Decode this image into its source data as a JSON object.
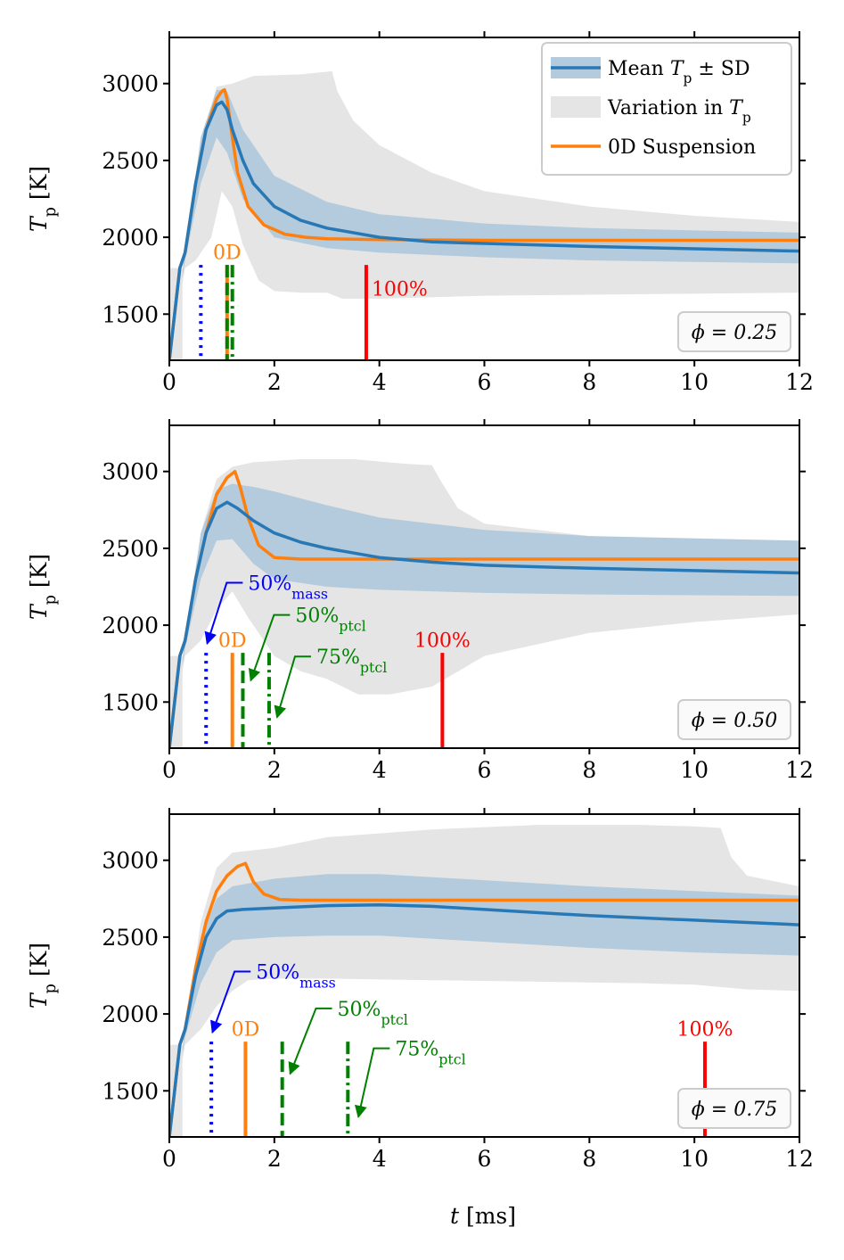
{
  "figure": {
    "xlabel": "t [ms]",
    "ylabel": "T_p [K]",
    "xlim": [
      0,
      12
    ],
    "ylim": [
      1200,
      3300
    ],
    "xticks": [
      0,
      2,
      4,
      6,
      8,
      10,
      12
    ],
    "yticks": [
      1500,
      2000,
      2500,
      3000
    ],
    "xtick_labels": [
      "0",
      "2",
      "4",
      "6",
      "8",
      "10",
      "12"
    ],
    "ytick_labels": [
      "1500",
      "2000",
      "2500",
      "3000"
    ],
    "colors": {
      "mean": "#2878b5",
      "sd_band": "#b3cbdc",
      "variation": "#e5e5e5",
      "suspension": "#ff7f0e",
      "mass_marker": "#0000ff",
      "ptcl_marker": "#008000",
      "full_marker": "#ff0000"
    }
  },
  "legend": {
    "entries": [
      {
        "key": "mean",
        "label": "Mean T_p ± SD"
      },
      {
        "key": "variation",
        "label": "Variation in T_p"
      },
      {
        "key": "suspension",
        "label": "0D Suspension"
      }
    ]
  },
  "chart_data": [
    {
      "type": "line",
      "panel_label": "ϕ = 0.25",
      "series": [
        {
          "name": "Mean T_p",
          "x": [
            0,
            0.1,
            0.2,
            0.3,
            0.5,
            0.7,
            0.9,
            1.0,
            1.1,
            1.2,
            1.4,
            1.6,
            2.0,
            2.5,
            3.0,
            4.0,
            5.0,
            6.0,
            8.0,
            10.0,
            12.0
          ],
          "y": [
            1200,
            1500,
            1800,
            1900,
            2350,
            2700,
            2860,
            2880,
            2830,
            2700,
            2500,
            2350,
            2200,
            2110,
            2060,
            2000,
            1970,
            1960,
            1940,
            1925,
            1910
          ]
        },
        {
          "name": "0D Suspension",
          "x": [
            0,
            0.1,
            0.2,
            0.3,
            0.5,
            0.7,
            0.9,
            1.0,
            1.05,
            1.1,
            1.2,
            1.3,
            1.5,
            1.8,
            2.2,
            2.6,
            3.0,
            4.0,
            6.0,
            12.0
          ],
          "y": [
            1200,
            1500,
            1800,
            1900,
            2350,
            2700,
            2900,
            2950,
            2960,
            2900,
            2650,
            2420,
            2200,
            2080,
            2020,
            2000,
            1990,
            1985,
            1980,
            1980
          ]
        },
        {
          "name": "SD upper",
          "x": [
            0,
            0.3,
            0.6,
            0.9,
            1.1,
            1.4,
            2.0,
            3.0,
            4.0,
            6.0,
            8.0,
            12.0
          ],
          "y": [
            1200,
            1900,
            2650,
            2960,
            2950,
            2700,
            2400,
            2230,
            2150,
            2090,
            2060,
            2030
          ]
        },
        {
          "name": "SD lower",
          "x": [
            0,
            0.3,
            0.6,
            0.9,
            1.1,
            1.4,
            2.0,
            3.0,
            4.0,
            6.0,
            8.0,
            12.0
          ],
          "y": [
            1200,
            1850,
            2350,
            2650,
            2550,
            2250,
            2000,
            1930,
            1900,
            1870,
            1850,
            1830
          ]
        },
        {
          "name": "Variation upper",
          "x": [
            0,
            0.3,
            0.6,
            0.9,
            1.2,
            1.6,
            2.5,
            3.1,
            3.2,
            3.5,
            4.0,
            5.0,
            6.0,
            8.0,
            10.0,
            12.0
          ],
          "y": [
            1200,
            1900,
            2600,
            2980,
            3000,
            3050,
            3060,
            3080,
            2950,
            2760,
            2600,
            2420,
            2300,
            2200,
            2140,
            2100
          ]
        },
        {
          "name": "Variation lower",
          "x": [
            0,
            0.3,
            0.5,
            0.8,
            1.0,
            1.2,
            1.4,
            1.7,
            2.0,
            2.5,
            3.0,
            3.3,
            4.0,
            6.0,
            12.0
          ],
          "y": [
            1200,
            1800,
            1850,
            2000,
            2300,
            2200,
            1950,
            1720,
            1650,
            1640,
            1640,
            1600,
            1600,
            1620,
            1640
          ]
        }
      ],
      "markers": [
        {
          "name": "mass",
          "x": 0.6,
          "style": "dotted"
        },
        {
          "name": "0D",
          "x": 1.1,
          "style": "solid",
          "label": "0D"
        },
        {
          "name": "ptcl50",
          "x": 1.1,
          "style": "dashed"
        },
        {
          "name": "ptcl75",
          "x": 1.2,
          "style": "dashdot"
        },
        {
          "name": "full",
          "x": 3.75,
          "style": "solid",
          "label": "100%"
        }
      ],
      "annotations": []
    },
    {
      "type": "line",
      "panel_label": "ϕ = 0.50",
      "series": [
        {
          "name": "Mean T_p",
          "x": [
            0,
            0.1,
            0.2,
            0.3,
            0.5,
            0.7,
            0.9,
            1.1,
            1.3,
            1.6,
            2.0,
            2.5,
            3.0,
            4.0,
            5.0,
            6.0,
            8.0,
            10.0,
            12.0
          ],
          "y": [
            1200,
            1500,
            1800,
            1900,
            2300,
            2600,
            2760,
            2800,
            2760,
            2680,
            2600,
            2540,
            2500,
            2440,
            2410,
            2390,
            2370,
            2355,
            2340
          ]
        },
        {
          "name": "0D Suspension",
          "x": [
            0,
            0.1,
            0.2,
            0.3,
            0.5,
            0.7,
            0.9,
            1.1,
            1.25,
            1.35,
            1.5,
            1.7,
            2.0,
            2.5,
            3.0,
            12.0
          ],
          "y": [
            1200,
            1500,
            1800,
            1900,
            2300,
            2600,
            2850,
            2960,
            3000,
            2900,
            2700,
            2520,
            2440,
            2430,
            2430,
            2430
          ]
        },
        {
          "name": "SD upper",
          "x": [
            0,
            0.3,
            0.6,
            0.9,
            1.2,
            1.6,
            2.0,
            3.0,
            4.0,
            6.0,
            8.0,
            12.0
          ],
          "y": [
            1200,
            1900,
            2600,
            2880,
            2920,
            2900,
            2870,
            2780,
            2700,
            2620,
            2580,
            2550
          ]
        },
        {
          "name": "SD lower",
          "x": [
            0,
            0.3,
            0.6,
            0.9,
            1.2,
            1.6,
            2.0,
            3.0,
            4.0,
            6.0,
            8.0,
            12.0
          ],
          "y": [
            1200,
            1850,
            2300,
            2550,
            2560,
            2400,
            2300,
            2250,
            2230,
            2210,
            2200,
            2190
          ]
        },
        {
          "name": "Variation upper",
          "x": [
            0,
            0.3,
            0.6,
            0.9,
            1.2,
            1.6,
            2.5,
            3.5,
            4.5,
            5.0,
            5.2,
            5.5,
            6.0,
            8.0,
            10.0,
            12.0
          ],
          "y": [
            1200,
            1900,
            2600,
            2950,
            3030,
            3060,
            3080,
            3080,
            3050,
            3040,
            2920,
            2760,
            2660,
            2580,
            2550,
            2530
          ]
        },
        {
          "name": "Variation lower",
          "x": [
            0,
            0.3,
            0.6,
            0.9,
            1.2,
            1.5,
            2.0,
            2.5,
            3.0,
            3.6,
            4.2,
            5.0,
            6.0,
            8.0,
            10.0,
            12.0
          ],
          "y": [
            1200,
            1800,
            1900,
            2100,
            2220,
            2050,
            1800,
            1700,
            1650,
            1550,
            1550,
            1600,
            1800,
            1950,
            2020,
            2070
          ]
        }
      ],
      "markers": [
        {
          "name": "mass",
          "x": 0.7,
          "style": "dotted"
        },
        {
          "name": "0D",
          "x": 1.2,
          "style": "solid",
          "label": "0D"
        },
        {
          "name": "ptcl50",
          "x": 1.4,
          "style": "dashed"
        },
        {
          "name": "ptcl75",
          "x": 1.9,
          "style": "dashdot"
        },
        {
          "name": "full",
          "x": 5.2,
          "style": "solid",
          "label": "100%"
        }
      ],
      "annotations": [
        {
          "key": "mass",
          "text": "50%",
          "sub": "mass",
          "tx": 1.5,
          "ty": 2230,
          "ax": 0.72,
          "ay": 1880
        },
        {
          "key": "ptcl50",
          "text": "50%",
          "sub": "ptcl",
          "tx": 2.4,
          "ty": 2020,
          "ax": 1.55,
          "ay": 1640
        },
        {
          "key": "ptcl75",
          "text": "75%",
          "sub": "ptcl",
          "tx": 2.8,
          "ty": 1750,
          "ax": 2.05,
          "ay": 1400
        }
      ]
    },
    {
      "type": "line",
      "panel_label": "ϕ = 0.75",
      "series": [
        {
          "name": "Mean T_p",
          "x": [
            0,
            0.1,
            0.2,
            0.3,
            0.5,
            0.7,
            0.9,
            1.1,
            1.4,
            2.0,
            3.0,
            4.0,
            5.0,
            6.0,
            8.0,
            10.0,
            12.0
          ],
          "y": [
            1200,
            1500,
            1800,
            1900,
            2250,
            2500,
            2620,
            2670,
            2680,
            2690,
            2705,
            2710,
            2700,
            2680,
            2640,
            2610,
            2580
          ]
        },
        {
          "name": "0D Suspension",
          "x": [
            0,
            0.1,
            0.2,
            0.3,
            0.5,
            0.7,
            0.9,
            1.1,
            1.3,
            1.45,
            1.6,
            1.8,
            2.1,
            2.5,
            3.0,
            12.0
          ],
          "y": [
            1200,
            1500,
            1800,
            1900,
            2300,
            2600,
            2800,
            2900,
            2960,
            2980,
            2860,
            2780,
            2745,
            2740,
            2740,
            2740
          ]
        },
        {
          "name": "SD upper",
          "x": [
            0,
            0.3,
            0.6,
            0.9,
            1.2,
            2.0,
            3.0,
            4.0,
            6.0,
            8.0,
            10.0,
            12.0
          ],
          "y": [
            1200,
            1900,
            2500,
            2750,
            2830,
            2880,
            2910,
            2910,
            2870,
            2830,
            2800,
            2770
          ]
        },
        {
          "name": "SD lower",
          "x": [
            0,
            0.3,
            0.6,
            0.9,
            1.2,
            2.0,
            3.0,
            4.0,
            6.0,
            8.0,
            10.0,
            12.0
          ],
          "y": [
            1200,
            1850,
            2200,
            2400,
            2480,
            2500,
            2510,
            2510,
            2470,
            2430,
            2400,
            2380
          ]
        },
        {
          "name": "Variation upper",
          "x": [
            0,
            0.3,
            0.6,
            0.9,
            1.2,
            2.0,
            3.0,
            5.0,
            7.0,
            9.0,
            10.0,
            10.5,
            10.7,
            11.0,
            12.0
          ],
          "y": [
            1200,
            1900,
            2600,
            2950,
            3050,
            3080,
            3150,
            3200,
            3230,
            3230,
            3220,
            3210,
            3020,
            2900,
            2830
          ]
        },
        {
          "name": "Variation lower",
          "x": [
            0,
            0.3,
            0.6,
            0.9,
            1.2,
            1.5,
            2.0,
            3.0,
            5.0,
            7.0,
            9.0,
            10.0,
            11.0,
            12.0
          ],
          "y": [
            1200,
            1800,
            1900,
            2050,
            2150,
            2220,
            2230,
            2230,
            2220,
            2210,
            2200,
            2190,
            2160,
            2150
          ]
        }
      ],
      "markers": [
        {
          "name": "mass",
          "x": 0.8,
          "style": "dotted"
        },
        {
          "name": "0D",
          "x": 1.45,
          "style": "solid",
          "label": "0D"
        },
        {
          "name": "ptcl50",
          "x": 2.15,
          "style": "dashed"
        },
        {
          "name": "ptcl75",
          "x": 3.4,
          "style": "dashdot"
        },
        {
          "name": "full",
          "x": 10.2,
          "style": "solid",
          "label": "100%"
        }
      ],
      "annotations": [
        {
          "key": "mass",
          "text": "50%",
          "sub": "mass",
          "tx": 1.65,
          "ty": 2230,
          "ax": 0.82,
          "ay": 1880
        },
        {
          "key": "ptcl50",
          "text": "50%",
          "sub": "ptcl",
          "tx": 3.2,
          "ty": 1990,
          "ax": 2.3,
          "ay": 1610
        },
        {
          "key": "ptcl75",
          "text": "75%",
          "sub": "ptcl",
          "tx": 4.3,
          "ty": 1730,
          "ax": 3.6,
          "ay": 1330
        }
      ]
    }
  ]
}
